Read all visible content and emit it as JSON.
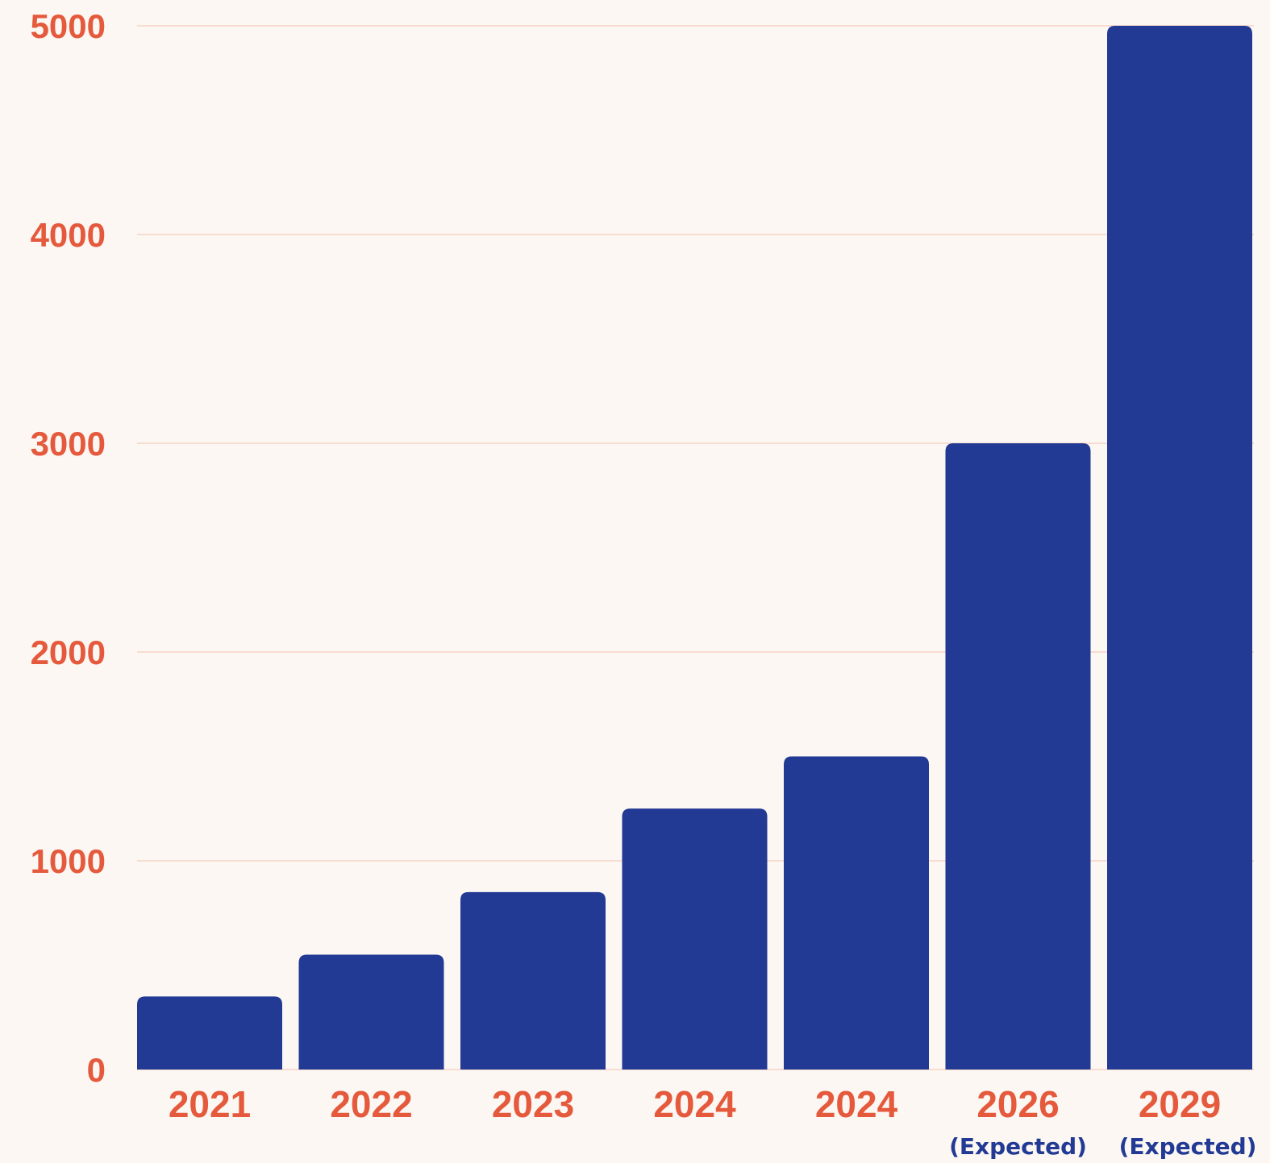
{
  "colors": {
    "background": "#fcf7f3",
    "bar": "#233a94",
    "tick_label": "#e55a3c",
    "annotation": "#233a94",
    "gridline": "#f6d2c6"
  },
  "chart_data": {
    "type": "bar",
    "title": "",
    "xlabel": "",
    "ylabel": "",
    "categories": [
      "2021",
      "2022",
      "2023",
      "2024",
      "2024",
      "2026",
      "2029"
    ],
    "category_notes": [
      "",
      "",
      "",
      "",
      "",
      "(Expected)",
      "(Expected)"
    ],
    "values": [
      350,
      550,
      850,
      1250,
      1500,
      3000,
      5000
    ],
    "ylim": [
      0,
      5000
    ],
    "yticks": [
      "0",
      "1000",
      "2000",
      "3000",
      "4000",
      "5000"
    ],
    "grid": true,
    "legend": "none"
  }
}
